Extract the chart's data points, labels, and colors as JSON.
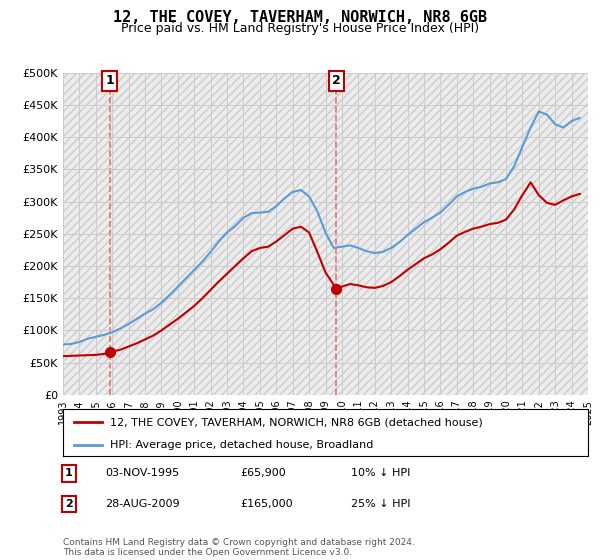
{
  "title": "12, THE COVEY, TAVERHAM, NORWICH, NR8 6GB",
  "subtitle": "Price paid vs. HM Land Registry's House Price Index (HPI)",
  "ylim": [
    0,
    500000
  ],
  "yticks": [
    0,
    50000,
    100000,
    150000,
    200000,
    250000,
    300000,
    350000,
    400000,
    450000,
    500000
  ],
  "ytick_labels": [
    "£0",
    "£50K",
    "£100K",
    "£150K",
    "£200K",
    "£250K",
    "£300K",
    "£350K",
    "£400K",
    "£450K",
    "£500K"
  ],
  "hpi_color": "#5b9bd5",
  "price_color": "#c00000",
  "marker_color": "#c00000",
  "annotation_box_color": "#c00000",
  "dashed_line_color": "#e87070",
  "grid_color": "#cccccc",
  "hatch_color": "#e0e0e0",
  "legend_label_price": "12, THE COVEY, TAVERHAM, NORWICH, NR8 6GB (detached house)",
  "legend_label_hpi": "HPI: Average price, detached house, Broadland",
  "purchase1_date": "03-NOV-1995",
  "purchase1_price": 65900,
  "purchase1_label": "1",
  "purchase1_x": 1995.84,
  "purchase1_pct": "10% ↓ HPI",
  "purchase2_date": "28-AUG-2009",
  "purchase2_price": 165000,
  "purchase2_label": "2",
  "purchase2_x": 2009.65,
  "purchase2_pct": "25% ↓ HPI",
  "footnote": "Contains HM Land Registry data © Crown copyright and database right 2024.\nThis data is licensed under the Open Government Licence v3.0.",
  "hpi_x": [
    1993.0,
    1993.5,
    1994.0,
    1994.5,
    1995.0,
    1995.5,
    1996.0,
    1996.5,
    1997.0,
    1997.5,
    1998.0,
    1998.5,
    1999.0,
    1999.5,
    2000.0,
    2000.5,
    2001.0,
    2001.5,
    2002.0,
    2002.5,
    2003.0,
    2003.5,
    2004.0,
    2004.5,
    2005.0,
    2005.5,
    2006.0,
    2006.5,
    2007.0,
    2007.5,
    2008.0,
    2008.5,
    2009.0,
    2009.5,
    2010.0,
    2010.5,
    2011.0,
    2011.5,
    2012.0,
    2012.5,
    2013.0,
    2013.5,
    2014.0,
    2014.5,
    2015.0,
    2015.5,
    2016.0,
    2016.5,
    2017.0,
    2017.5,
    2018.0,
    2018.5,
    2019.0,
    2019.5,
    2020.0,
    2020.5,
    2021.0,
    2021.5,
    2022.0,
    2022.5,
    2023.0,
    2023.5,
    2024.0,
    2024.5
  ],
  "hpi_y": [
    78000,
    79000,
    82000,
    87000,
    90000,
    93000,
    97000,
    103000,
    110000,
    118000,
    126000,
    133000,
    143000,
    155000,
    168000,
    181000,
    194000,
    207000,
    222000,
    238000,
    252000,
    262000,
    275000,
    282000,
    283000,
    284000,
    293000,
    305000,
    315000,
    318000,
    308000,
    285000,
    252000,
    228000,
    230000,
    232000,
    228000,
    223000,
    220000,
    222000,
    228000,
    237000,
    248000,
    258000,
    268000,
    275000,
    283000,
    295000,
    308000,
    315000,
    320000,
    323000,
    328000,
    330000,
    335000,
    355000,
    385000,
    415000,
    440000,
    435000,
    420000,
    415000,
    425000,
    430000
  ],
  "price_x": [
    1993.0,
    1993.5,
    1994.0,
    1994.5,
    1995.0,
    1995.5,
    1995.84,
    1996.0,
    1996.5,
    1997.0,
    1997.5,
    1998.0,
    1998.5,
    1999.0,
    1999.5,
    2000.0,
    2000.5,
    2001.0,
    2001.5,
    2002.0,
    2002.5,
    2003.0,
    2003.5,
    2004.0,
    2004.5,
    2005.0,
    2005.5,
    2006.0,
    2006.5,
    2007.0,
    2007.5,
    2008.0,
    2008.5,
    2009.0,
    2009.65,
    2010.0,
    2010.5,
    2011.0,
    2011.5,
    2012.0,
    2012.5,
    2013.0,
    2013.5,
    2014.0,
    2014.5,
    2015.0,
    2015.5,
    2016.0,
    2016.5,
    2017.0,
    2017.5,
    2018.0,
    2018.5,
    2019.0,
    2019.5,
    2020.0,
    2020.5,
    2021.0,
    2021.5,
    2022.0,
    2022.5,
    2023.0,
    2023.5,
    2024.0,
    2024.5
  ],
  "price_y": [
    60000,
    60500,
    61000,
    61500,
    62000,
    63500,
    65900,
    67000,
    70000,
    75000,
    80000,
    86000,
    92000,
    100000,
    109000,
    118000,
    128000,
    138000,
    150000,
    163000,
    176000,
    188000,
    200000,
    212000,
    223000,
    228000,
    230000,
    238000,
    248000,
    258000,
    261000,
    252000,
    222000,
    190000,
    165000,
    168000,
    172000,
    170000,
    167000,
    166000,
    169000,
    175000,
    184000,
    194000,
    203000,
    212000,
    218000,
    226000,
    236000,
    247000,
    253000,
    258000,
    261000,
    265000,
    267000,
    272000,
    288000,
    310000,
    330000,
    310000,
    298000,
    295000,
    302000,
    308000,
    312000
  ],
  "xlim": [
    1993,
    2025
  ],
  "xticks": [
    1993,
    1994,
    1995,
    1996,
    1997,
    1998,
    1999,
    2000,
    2001,
    2002,
    2003,
    2004,
    2005,
    2006,
    2007,
    2008,
    2009,
    2010,
    2011,
    2012,
    2013,
    2014,
    2015,
    2016,
    2017,
    2018,
    2019,
    2020,
    2021,
    2022,
    2023,
    2024,
    2025
  ]
}
